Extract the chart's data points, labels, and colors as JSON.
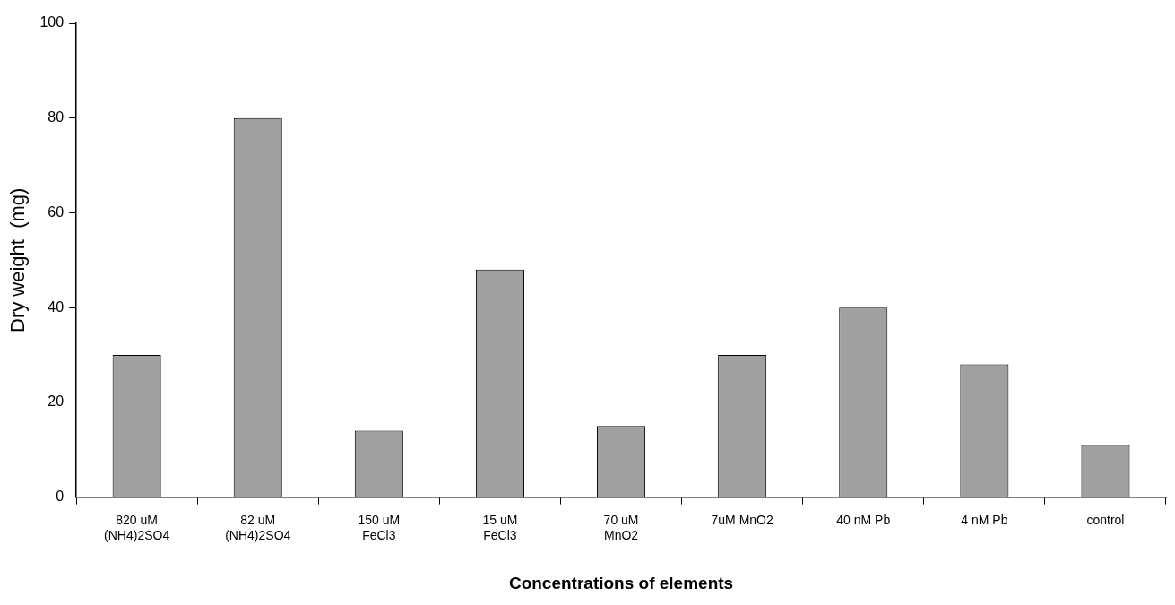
{
  "chart_data": {
    "type": "bar",
    "xlabel": "Concentrations of elements",
    "ylabel": "Dry weight  (mg)",
    "categories": [
      "820 uM (NH4)2SO4",
      "82 uM (NH4)2SO4",
      "150 uM FeCl3",
      "15 uM FeCl3",
      "70 uM MnO2",
      "7uM MnO2",
      "40 nM Pb",
      "4 nM Pb",
      "control"
    ],
    "values": [
      30,
      80,
      14,
      48,
      15,
      30,
      40,
      28,
      11
    ],
    "color": "#a0a0a0",
    "ylim": [
      0,
      100
    ],
    "yticks": [
      0,
      20,
      40,
      60,
      80,
      100
    ],
    "grid": false,
    "legend": false
  }
}
